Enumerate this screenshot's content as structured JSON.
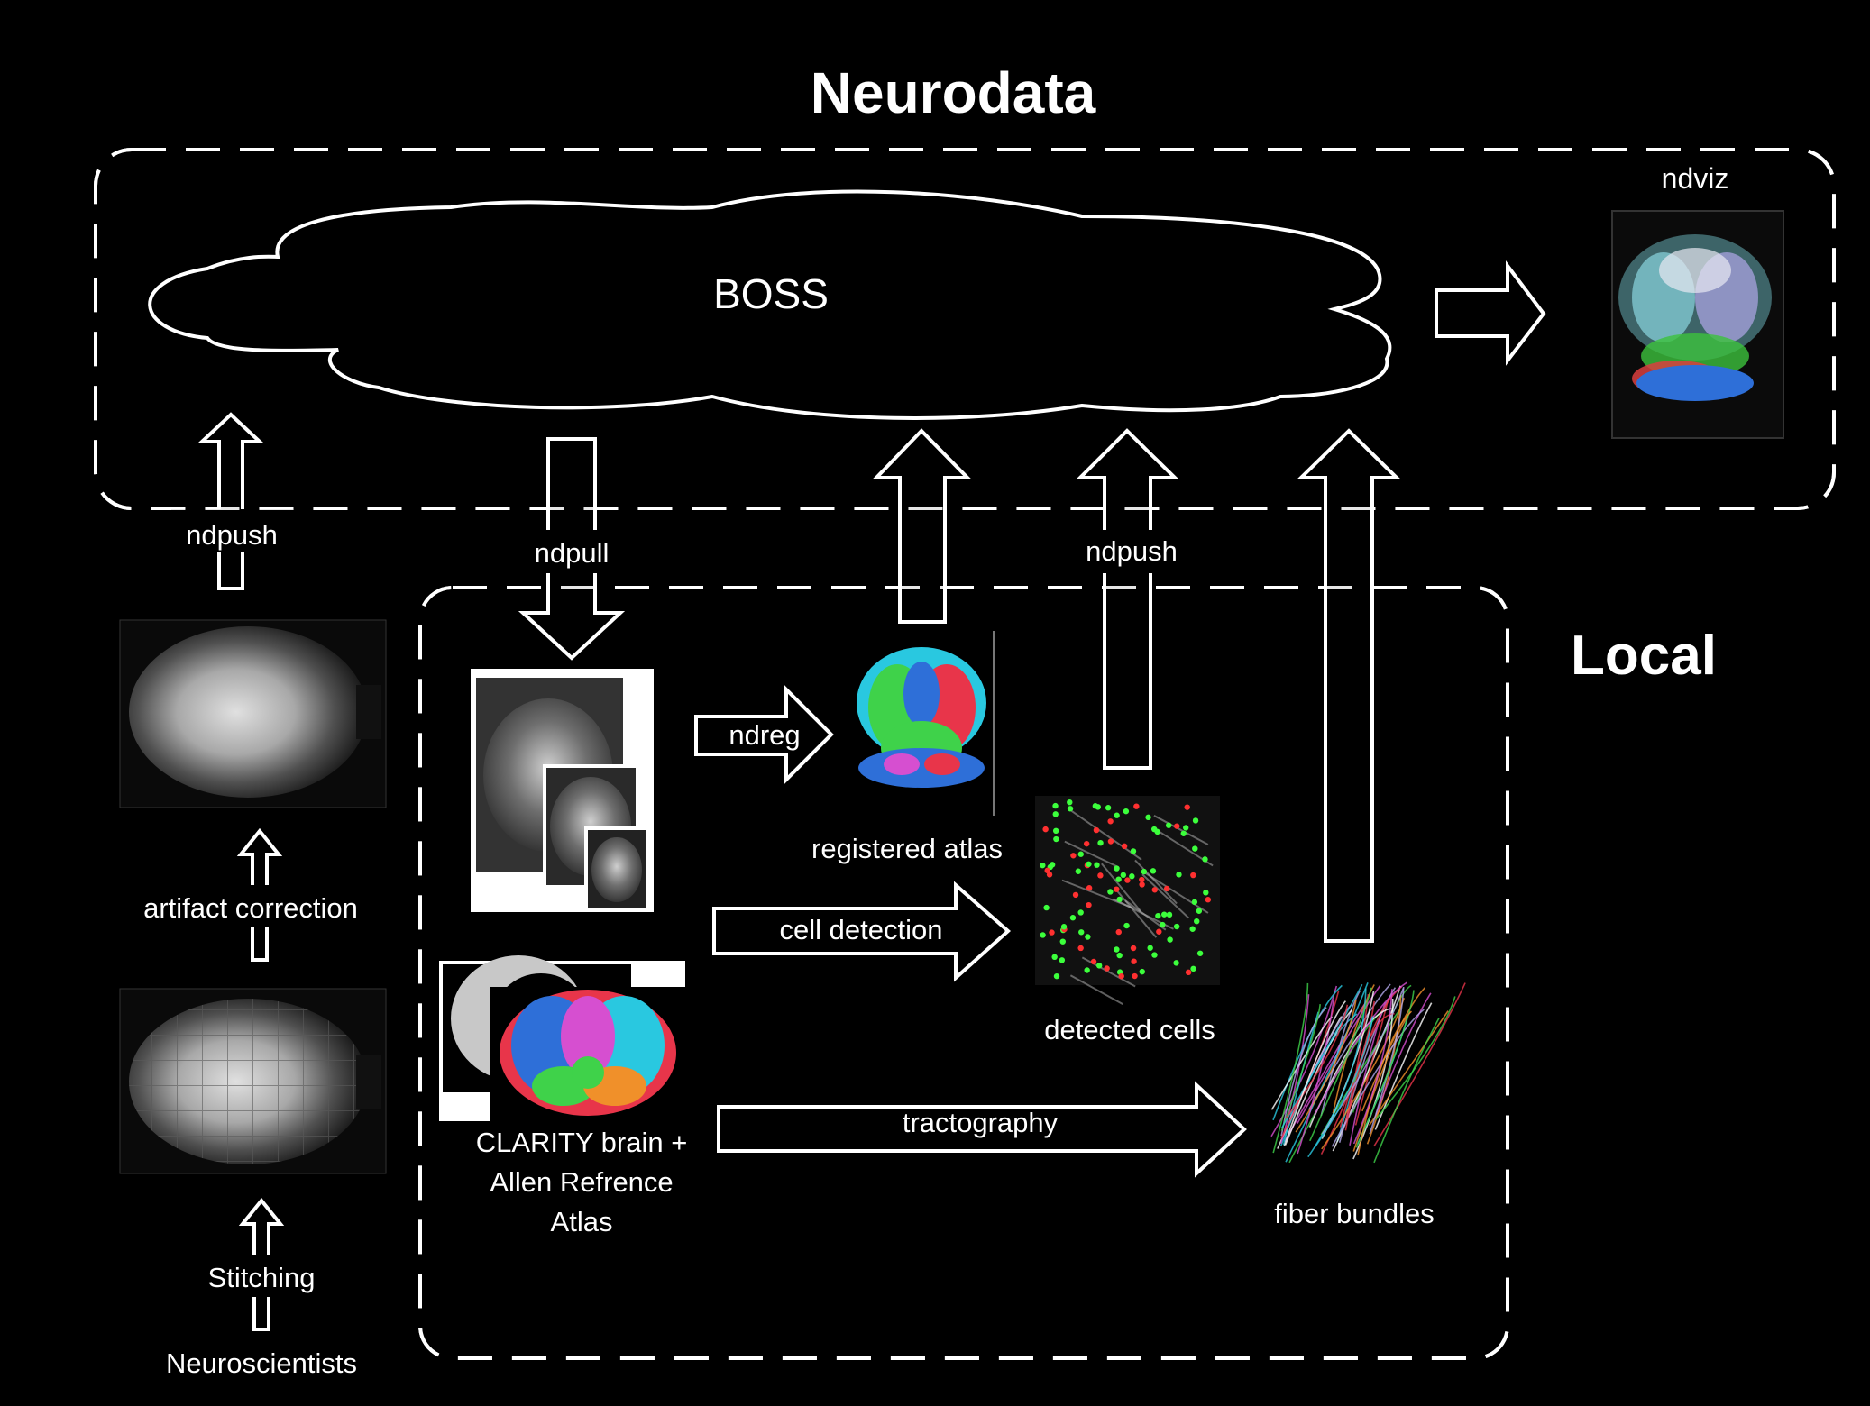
{
  "title": "Neurodata",
  "cloud_label": "BOSS",
  "local_label": "Local",
  "ndviz_label": "ndviz",
  "ops": {
    "ndpush_left": "ndpush",
    "ndpull": "ndpull",
    "ndpush_right": "ndpush",
    "ndreg": "ndreg",
    "cell_detection": "cell detection",
    "tractography": "tractography",
    "artifact_correction": "artifact correction",
    "stitching": "Stitching"
  },
  "source": "Neuroscientists",
  "outputs": {
    "registered_atlas": "registered atlas",
    "detected_cells": "detected cells",
    "fiber_bundles": "fiber bundles"
  },
  "input_caption": [
    "CLARITY brain +",
    "Allen Refrence",
    "Atlas"
  ],
  "colors": {
    "background": "#000000",
    "foreground": "#ffffff",
    "atlas_blue": "#2e6fd8",
    "atlas_green": "#3fd24a",
    "atlas_red": "#e8354a",
    "atlas_magenta": "#d64fd0",
    "atlas_cyan": "#29c8e0",
    "atlas_orange": "#f0902a",
    "cell_green": "#3cff3c",
    "cell_red": "#ff3030"
  }
}
